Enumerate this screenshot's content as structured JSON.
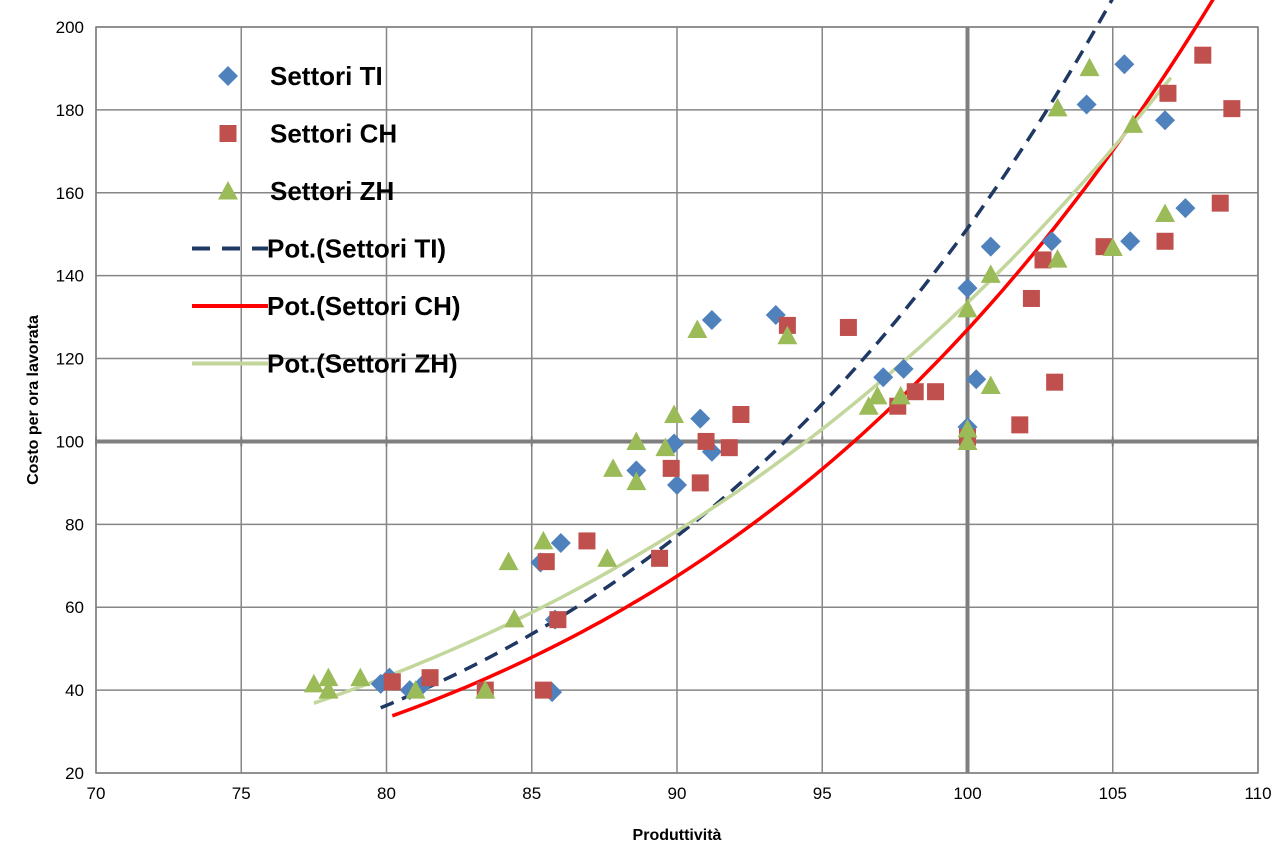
{
  "chart_data": {
    "type": "scatter",
    "title": "",
    "xlabel": "Produttività",
    "ylabel": "Costo per ora lavorata",
    "xlim": [
      70,
      110
    ],
    "ylim": [
      20,
      200
    ],
    "xticks": [
      70,
      75,
      80,
      85,
      90,
      95,
      100,
      105,
      110
    ],
    "yticks": [
      20,
      40,
      60,
      80,
      100,
      120,
      140,
      160,
      180,
      200
    ],
    "grid": true,
    "reference_lines": {
      "x": 100,
      "y": 100
    },
    "legend_position": "top-left",
    "series": [
      {
        "name": "Settori TI",
        "marker": "diamond",
        "color": "#4F81BD",
        "points": [
          [
            79.8,
            41.5
          ],
          [
            80.1,
            43
          ],
          [
            80.8,
            40
          ],
          [
            81.2,
            41
          ],
          [
            85.3,
            70.8
          ],
          [
            86,
            75.5
          ],
          [
            85.8,
            57
          ],
          [
            85.7,
            39.5
          ],
          [
            88.6,
            93
          ],
          [
            89.9,
            99.5
          ],
          [
            90,
            89.5
          ],
          [
            90.8,
            105.5
          ],
          [
            91.2,
            129.3
          ],
          [
            91.2,
            97.5
          ],
          [
            93.4,
            130.5
          ],
          [
            97.1,
            115.5
          ],
          [
            97.8,
            117.5
          ],
          [
            100,
            137
          ],
          [
            100,
            103.5
          ],
          [
            100.3,
            115
          ],
          [
            100.8,
            147
          ],
          [
            102.9,
            148.3
          ],
          [
            104.1,
            181.3
          ],
          [
            105.4,
            191
          ],
          [
            105.6,
            148.3
          ],
          [
            106.8,
            177.5
          ],
          [
            107.5,
            156.3
          ]
        ]
      },
      {
        "name": "Settori CH",
        "marker": "square",
        "color": "#C0504D",
        "points": [
          [
            80.2,
            42
          ],
          [
            81.5,
            43
          ],
          [
            83.4,
            40
          ],
          [
            85.4,
            40
          ],
          [
            85.5,
            71
          ],
          [
            85.9,
            57
          ],
          [
            86.9,
            76
          ],
          [
            89.4,
            71.8
          ],
          [
            89.8,
            93.5
          ],
          [
            90.8,
            90
          ],
          [
            91,
            100
          ],
          [
            91.8,
            98.5
          ],
          [
            92.2,
            106.5
          ],
          [
            93.8,
            128
          ],
          [
            95.9,
            127.5
          ],
          [
            97.6,
            108.5
          ],
          [
            98.2,
            112
          ],
          [
            98.9,
            112
          ],
          [
            100,
            101
          ],
          [
            101.8,
            104
          ],
          [
            102.2,
            134.5
          ],
          [
            102.6,
            143.8
          ],
          [
            103,
            114.3
          ],
          [
            104.7,
            147
          ],
          [
            106.8,
            148.3
          ],
          [
            106.9,
            184
          ],
          [
            108.1,
            193.2
          ],
          [
            108.7,
            157.5
          ],
          [
            109.1,
            180.3
          ]
        ]
      },
      {
        "name": "Settori ZH",
        "marker": "triangle",
        "color": "#9BBB59",
        "points": [
          [
            77.5,
            41.5
          ],
          [
            78,
            43
          ],
          [
            78,
            40
          ],
          [
            79.1,
            43
          ],
          [
            81,
            40
          ],
          [
            83.4,
            40
          ],
          [
            84.2,
            71
          ],
          [
            84.4,
            57.2
          ],
          [
            85.4,
            76
          ],
          [
            87.6,
            71.8
          ],
          [
            87.8,
            93.5
          ],
          [
            88.6,
            100
          ],
          [
            88.6,
            90.3
          ],
          [
            89.6,
            98.5
          ],
          [
            89.9,
            106.5
          ],
          [
            90.7,
            127
          ],
          [
            93.8,
            125.5
          ],
          [
            96.6,
            108.5
          ],
          [
            96.9,
            111
          ],
          [
            97.7,
            111
          ],
          [
            100,
            100
          ],
          [
            100,
            103
          ],
          [
            100,
            132
          ],
          [
            100.8,
            113.5
          ],
          [
            100.8,
            140.3
          ],
          [
            103.1,
            144
          ],
          [
            103.1,
            180.5
          ],
          [
            104.2,
            190.2
          ],
          [
            105,
            146.8
          ],
          [
            105.7,
            176.5
          ],
          [
            106.8,
            155
          ]
        ]
      }
    ],
    "trendlines": [
      {
        "name": "Pot.(Settori TI)",
        "kind": "power",
        "of_series": "Settori TI",
        "color": "#1F3864",
        "style": "dashed",
        "x_range": [
          79.8,
          107.1
        ],
        "coef": 2.4e-11,
        "exp": 6.4
      },
      {
        "name": "Pot.(Settori CH)",
        "kind": "power",
        "of_series": "Settori CH",
        "color": "#FF0000",
        "style": "solid",
        "x_range": [
          80.2,
          109.1
        ],
        "coef": 1.27e-10,
        "exp": 6.0
      },
      {
        "name": "Pot.(Settori ZH)",
        "kind": "power",
        "of_series": "Settori ZH",
        "color": "#C3D69B",
        "style": "solid",
        "x_range": [
          77.5,
          107.0
        ],
        "coef": 1.06e-08,
        "exp": 5.05
      }
    ]
  }
}
